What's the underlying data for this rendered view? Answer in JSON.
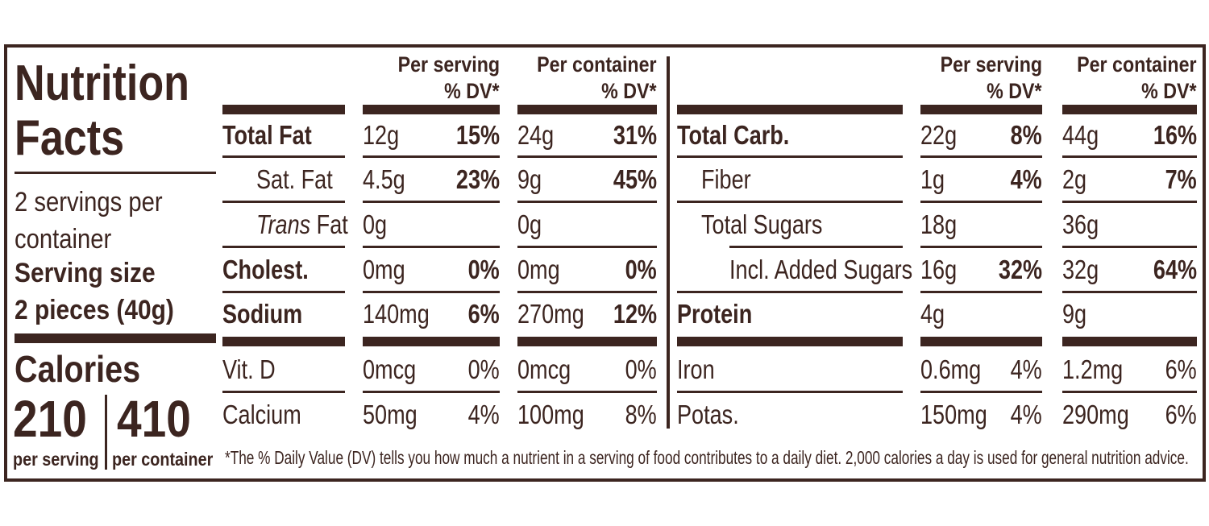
{
  "label": {
    "title": "Nutrition Facts",
    "servings_per_container": "2 servings per container",
    "serving_size_label": "Serving size",
    "serving_size": "2 pieces (40g)",
    "calories_label": "Calories",
    "calories": [
      {
        "amount": "210",
        "label": "per serving"
      },
      {
        "amount": "410",
        "label": "per container"
      }
    ],
    "panels": [
      {
        "headers": [
          {
            "title": "Per serving",
            "dv": "% DV*"
          },
          {
            "title": "Per container",
            "dv": "% DV*"
          }
        ],
        "nutrients": [
          {
            "name": "Total Fat",
            "serving_amount": "12g",
            "serving_dv": "15%",
            "container_amount": "24g",
            "container_dv": "31%"
          },
          {
            "name": "Sat. Fat",
            "serving_amount": "4.5g",
            "serving_dv": "23%",
            "container_amount": "9g",
            "container_dv": "45%"
          },
          {
            "name": "Trans Fat",
            "serving_amount": "0g",
            "serving_dv": null,
            "container_amount": "0g",
            "container_dv": null
          },
          {
            "name": "Cholest.",
            "serving_amount": "0mg",
            "serving_dv": "0%",
            "container_amount": "0mg",
            "container_dv": "0%"
          },
          {
            "name": "Sodium",
            "serving_amount": "140mg",
            "serving_dv": "6%",
            "container_amount": "270mg",
            "container_dv": "12%"
          }
        ],
        "minerals": [
          {
            "name": "Vit. D",
            "serving_amount": "0mcg",
            "serving_dv": "0%",
            "container_amount": "0mcg",
            "container_dv": "0%"
          },
          {
            "name": "Calcium",
            "serving_amount": "50mg",
            "serving_dv": "4%",
            "container_amount": "100mg",
            "container_dv": "8%"
          }
        ]
      },
      {
        "headers": [
          {
            "title": "Per serving",
            "dv": "% DV*"
          },
          {
            "title": "Per container",
            "dv": "% DV*"
          }
        ],
        "nutrients": [
          {
            "name": "Total Carb.",
            "serving_amount": "22g",
            "serving_dv": "8%",
            "container_amount": "44g",
            "container_dv": "16%"
          },
          {
            "name": "Fiber",
            "serving_amount": "1g",
            "serving_dv": "4%",
            "container_amount": "2g",
            "container_dv": "7%"
          },
          {
            "name": "Total Sugars",
            "serving_amount": "18g",
            "serving_dv": null,
            "container_amount": "36g",
            "container_dv": null
          },
          {
            "name": "Incl. Added Sugars",
            "serving_amount": "16g",
            "serving_dv": "32%",
            "container_amount": "32g",
            "container_dv": "64%"
          },
          {
            "name": "Protein",
            "serving_amount": "4g",
            "serving_dv": null,
            "container_amount": "9g",
            "container_dv": null
          }
        ],
        "minerals": [
          {
            "name": "Iron",
            "serving_amount": "0.6mg",
            "serving_dv": "4%",
            "container_amount": "1.2mg",
            "container_dv": "6%"
          },
          {
            "name": "Potas.",
            "serving_amount": "150mg",
            "serving_dv": "4%",
            "container_amount": "290mg",
            "container_dv": "6%"
          }
        ]
      }
    ],
    "footnote": "*The % Daily Value (DV) tells you how much a nutrient in a serving of food contributes to a daily diet. 2,000 calories a day is used for general nutrition advice."
  }
}
